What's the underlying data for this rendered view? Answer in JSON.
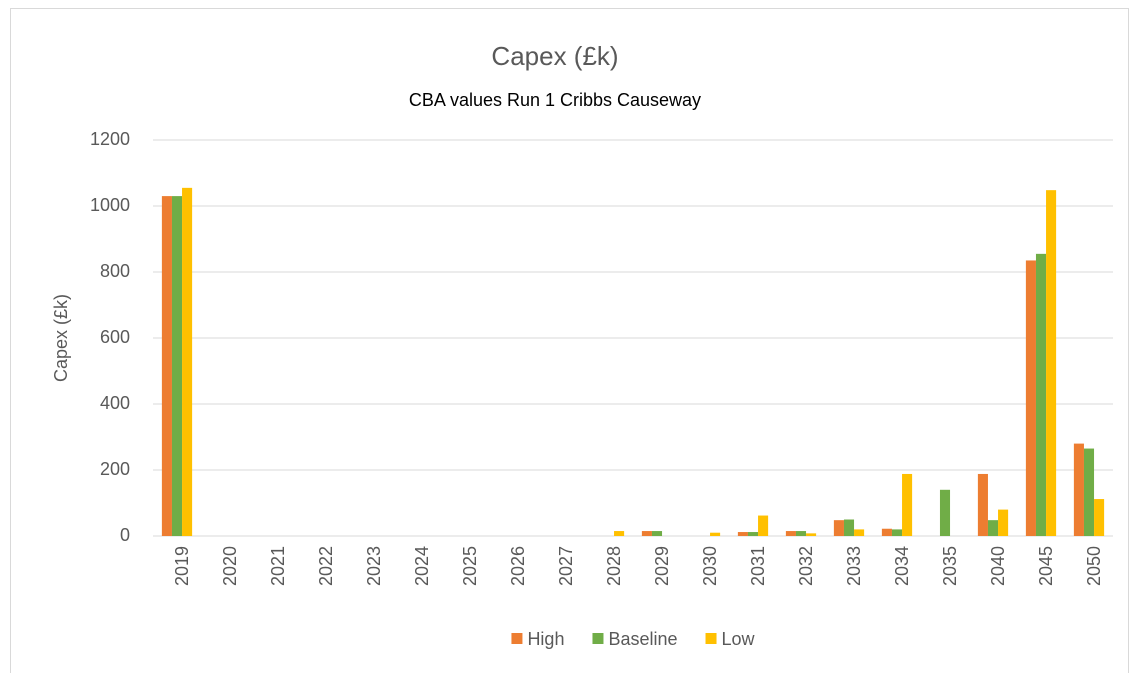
{
  "chart_data": {
    "type": "bar",
    "title": "Capex (£k)",
    "subtitle": "CBA values Run 1 Cribbs Causeway",
    "y_label": "Capex (£k)",
    "categories": [
      "2019",
      "2020",
      "2021",
      "2022",
      "2023",
      "2024",
      "2025",
      "2026",
      "2027",
      "2028",
      "2029",
      "2030",
      "2031",
      "2032",
      "2033",
      "2034",
      "2035",
      "2040",
      "2045",
      "2050"
    ],
    "series": [
      {
        "name": "High",
        "color": "#ed7d31",
        "values": [
          1030,
          0,
          0,
          0,
          0,
          0,
          0,
          0,
          0,
          0,
          15,
          0,
          12,
          15,
          48,
          22,
          0,
          188,
          835,
          280
        ]
      },
      {
        "name": "Baseline",
        "color": "#70ad47",
        "values": [
          1030,
          0,
          0,
          0,
          0,
          0,
          0,
          0,
          0,
          0,
          15,
          0,
          12,
          15,
          50,
          20,
          140,
          48,
          855,
          265
        ]
      },
      {
        "name": "Low",
        "color": "#ffc000",
        "values": [
          1055,
          0,
          0,
          0,
          0,
          0,
          0,
          0,
          0,
          15,
          0,
          10,
          62,
          8,
          20,
          188,
          0,
          80,
          1048,
          112
        ]
      }
    ],
    "ylim": [
      0,
      1200
    ],
    "yticks": [
      0,
      200,
      400,
      600,
      800,
      1000,
      1200
    ],
    "grid": true,
    "legend": "bottom"
  }
}
